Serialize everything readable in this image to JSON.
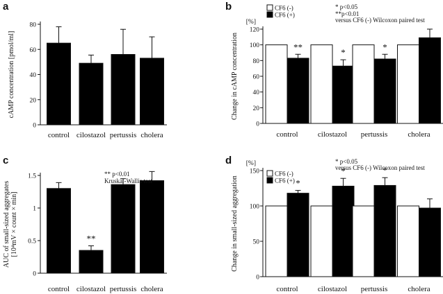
{
  "chart_data": [
    {
      "panel": "a",
      "type": "bar",
      "ylabel": "cAMP concentration [pmol/ml]",
      "ylim": [
        0,
        80
      ],
      "yticks": [
        0,
        20,
        40,
        60,
        80
      ],
      "categories": [
        "control",
        "cilostazol",
        "pertussis",
        "cholera"
      ],
      "series": [
        {
          "name": "cAMP",
          "values": [
            65,
            49,
            56,
            53
          ],
          "errors": [
            13,
            6.5,
            20,
            17
          ],
          "fill": "black"
        }
      ],
      "annotations": []
    },
    {
      "panel": "b",
      "type": "bar",
      "ylabel": "Change in cAMP concentration",
      "yunit": "[%]",
      "ylim": [
        0,
        120
      ],
      "yticks": [
        0,
        20,
        40,
        60,
        80,
        100,
        120
      ],
      "categories": [
        "control",
        "cilostazol",
        "pertussis",
        "cholera"
      ],
      "legend": [
        "CF6 (-)",
        "CF6 (+)"
      ],
      "series": [
        {
          "name": "CF6 (-)",
          "values": [
            100,
            100,
            100,
            100
          ],
          "errors": [
            0,
            0,
            0,
            0
          ],
          "fill": "white"
        },
        {
          "name": "CF6 (+)",
          "values": [
            83,
            73,
            82,
            109
          ],
          "errors": [
            5,
            8,
            6,
            11
          ],
          "fill": "black"
        }
      ],
      "stars": [
        "**",
        "*",
        "*",
        ""
      ],
      "annotations": [
        "*  p<0.05",
        "**p<0.01",
        "versus CF6 (-) Wilcoxon paired test"
      ]
    },
    {
      "panel": "c",
      "type": "bar",
      "ylabel": "AUC of small-sized aggregates",
      "ylabel2": "[10⁴mV × count × min]",
      "ylim": [
        0,
        1.5
      ],
      "yticks": [
        0,
        0.5,
        1,
        1.5
      ],
      "ytick_labels": [
        "0",
        "0.5",
        "1",
        "1.5"
      ],
      "categories": [
        "control",
        "cilostazol",
        "pertussis",
        "cholera"
      ],
      "series": [
        {
          "name": "AUC",
          "values": [
            1.3,
            0.35,
            1.36,
            1.42
          ],
          "errors": [
            0.09,
            0.07,
            0.09,
            0.14
          ],
          "fill": "black"
        }
      ],
      "stars": [
        "",
        "**",
        "",
        ""
      ],
      "annotations": [
        "** p<0.01",
        "Kruskal-Wallis test"
      ]
    },
    {
      "panel": "d",
      "type": "bar",
      "ylabel": "Change in small-sized aggregation",
      "yunit": "[%]",
      "ylim": [
        0,
        150
      ],
      "yticks": [
        0,
        50,
        100,
        150
      ],
      "categories": [
        "control",
        "cilostazol",
        "pertussis",
        "cholera"
      ],
      "legend": [
        "CF6 (-)",
        "CF6 (+)"
      ],
      "series": [
        {
          "name": "CF6 (-)",
          "values": [
            100,
            100,
            100,
            100
          ],
          "errors": [
            0,
            0,
            0,
            0
          ],
          "fill": "white"
        },
        {
          "name": "CF6 (+)",
          "values": [
            118,
            128,
            129,
            97
          ],
          "errors": [
            4,
            11,
            11,
            13
          ],
          "fill": "black"
        }
      ],
      "stars": [
        "*",
        "*",
        "*",
        ""
      ],
      "annotations": [
        "*  p<0.05",
        "versus CF6 (-) Wilcoxon paired test"
      ]
    }
  ],
  "colors": {
    "ink": "#111111",
    "bar_dark": "#000000",
    "bar_light": "#ffffff"
  }
}
